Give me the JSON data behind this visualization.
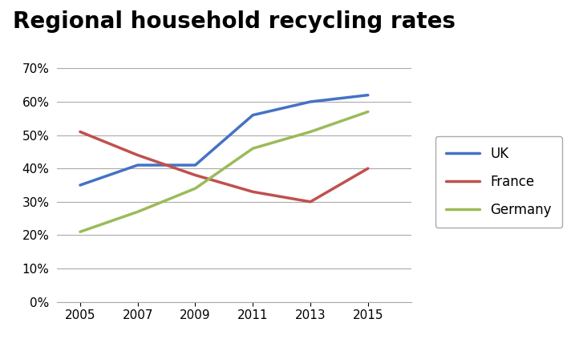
{
  "title": "Regional household recycling rates",
  "years": [
    2005,
    2007,
    2009,
    2011,
    2013,
    2015
  ],
  "series": [
    {
      "name": "UK",
      "color": "#4472C4",
      "values": [
        0.35,
        0.41,
        0.41,
        0.56,
        0.6,
        0.62
      ]
    },
    {
      "name": "France",
      "color": "#C0504D",
      "values": [
        0.51,
        0.44,
        0.38,
        0.33,
        0.3,
        0.4
      ]
    },
    {
      "name": "Germany",
      "color": "#9BBB59",
      "values": [
        0.21,
        0.27,
        0.34,
        0.46,
        0.51,
        0.57
      ]
    }
  ],
  "ylim": [
    0,
    0.72
  ],
  "yticks": [
    0.0,
    0.1,
    0.2,
    0.3,
    0.4,
    0.5,
    0.6,
    0.7
  ],
  "xlim": [
    2004.2,
    2016.5
  ],
  "background_color": "#ffffff",
  "title_fontsize": 20,
  "tick_fontsize": 11,
  "linewidth": 2.5,
  "grid_color": "#AAAAAA",
  "legend_fontsize": 12,
  "legend_labelspacing": 1.0,
  "legend_handlelength": 2.5
}
